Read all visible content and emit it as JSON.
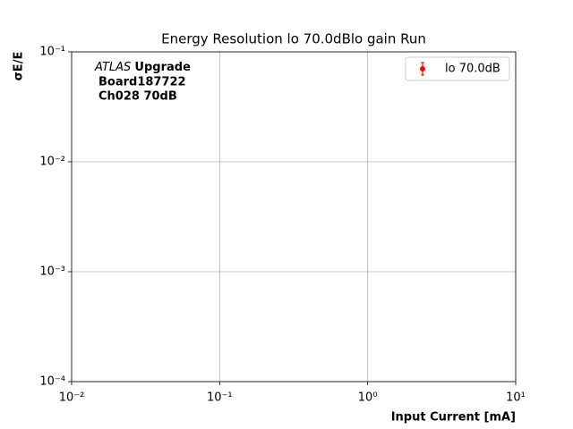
{
  "chart_data": {
    "type": "scatter",
    "title": "Energy Resolution lo 70.0dBlo gain Run",
    "x_label": "Input Current [mA]",
    "y_label": "σE/E",
    "annotation": {
      "italic": "ATLAS",
      "bold": "Upgrade",
      "lines": [
        "Board187722",
        "Ch028 70dB"
      ]
    },
    "x": [],
    "series": [
      {
        "name": "lo 70.0dB",
        "color": "#ff0000",
        "values": []
      }
    ],
    "xlim": [
      0.01,
      10
    ],
    "ylim": [
      0.0001,
      0.1
    ],
    "xticks": [
      {
        "value": 0.01,
        "label": "10⁻²"
      },
      {
        "value": 0.1,
        "label": "10⁻¹"
      },
      {
        "value": 1,
        "label": "10⁰"
      },
      {
        "value": 10,
        "label": "10¹"
      }
    ],
    "yticks": [
      {
        "value": 0.0001,
        "label": "10⁻⁴"
      },
      {
        "value": 0.001,
        "label": "10⁻³"
      },
      {
        "value": 0.01,
        "label": "10⁻²"
      },
      {
        "value": 0.1,
        "label": "10⁻¹"
      }
    ],
    "log_x": true,
    "log_y": true,
    "grid": true,
    "legend": "upper right"
  }
}
